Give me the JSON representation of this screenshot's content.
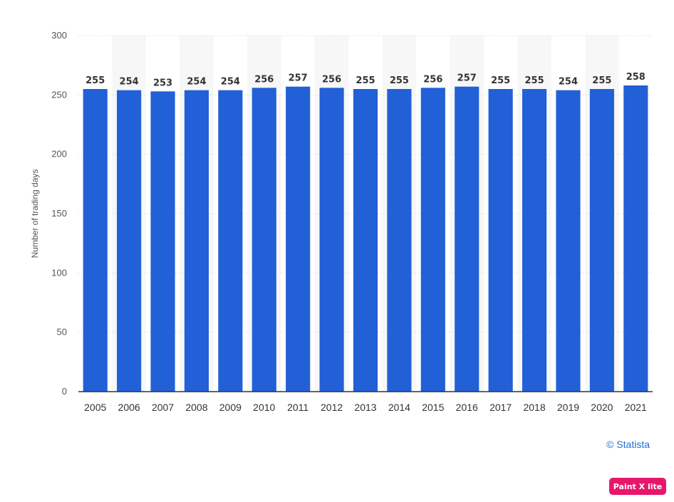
{
  "chart_data": {
    "type": "bar",
    "categories": [
      "2005",
      "2006",
      "2007",
      "2008",
      "2009",
      "2010",
      "2011",
      "2012",
      "2013",
      "2014",
      "2015",
      "2016",
      "2017",
      "2018",
      "2019",
      "2020",
      "2021"
    ],
    "values": [
      255,
      254,
      253,
      254,
      254,
      256,
      257,
      256,
      255,
      255,
      256,
      257,
      255,
      255,
      254,
      255,
      258
    ],
    "ylabel": "Number of trading days",
    "ylim": [
      0,
      300
    ],
    "yticks": [
      0,
      50,
      100,
      150,
      200,
      250,
      300
    ],
    "grid": true,
    "bar_color": "#2160d6",
    "alt_band_color": "#f7f7f7"
  },
  "credit": "© Statista",
  "badge": "Paint X lite"
}
